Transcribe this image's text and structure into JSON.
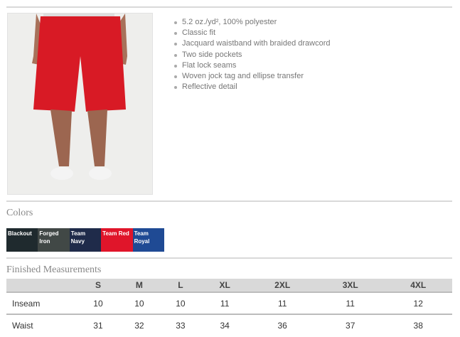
{
  "features": [
    "5.2 oz./yd², 100% polyester",
    "Classic fit",
    "Jacquard waistband with braided drawcord",
    "Two side pockets",
    "Flat lock seams",
    "Woven jock tag and ellipse transfer",
    "Reflective detail"
  ],
  "colors_title": "Colors",
  "colors": [
    {
      "name": "Blackout",
      "hex": "#1f2a2e"
    },
    {
      "name": "Forged Iron",
      "hex": "#414846"
    },
    {
      "name": "Team Navy",
      "hex": "#1f2b4a"
    },
    {
      "name": "Team Red",
      "hex": "#e0152a"
    },
    {
      "name": "Team Royal",
      "hex": "#1f4a94"
    }
  ],
  "measurements_title": "Finished Measurements",
  "sizes": [
    "S",
    "M",
    "L",
    "XL",
    "2XL",
    "3XL",
    "4XL"
  ],
  "rows": [
    {
      "label": "Inseam",
      "values": [
        "10",
        "10",
        "10",
        "11",
        "11",
        "11",
        "12"
      ]
    },
    {
      "label": "Waist",
      "values": [
        "31",
        "32",
        "33",
        "34",
        "36",
        "37",
        "38"
      ]
    }
  ]
}
